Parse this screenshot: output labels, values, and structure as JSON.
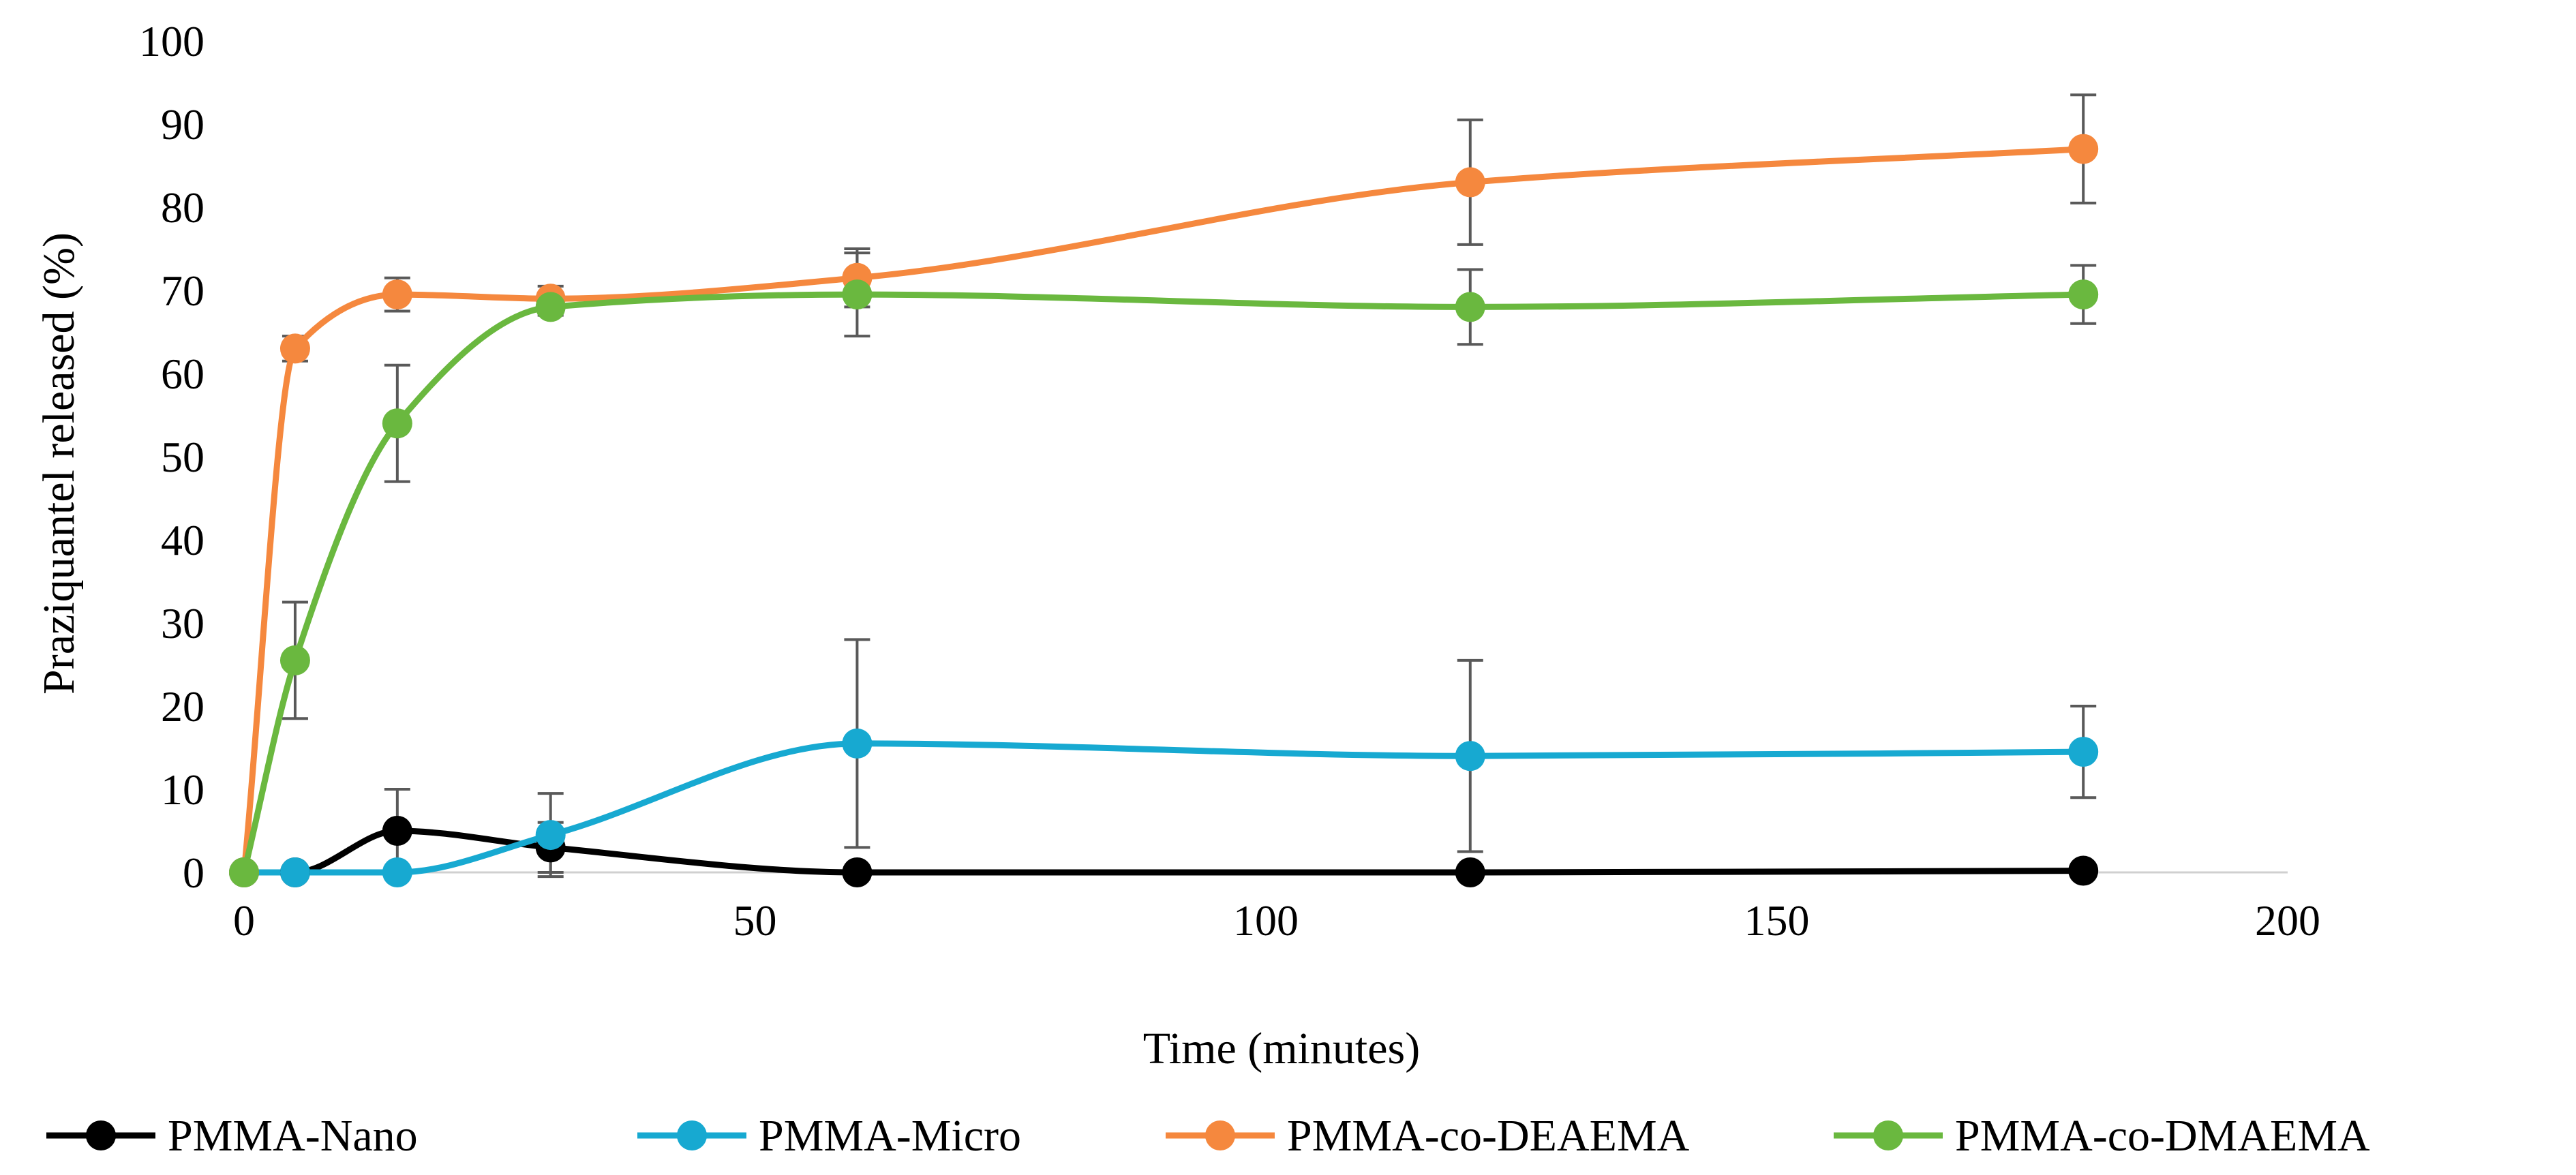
{
  "chart_data": {
    "type": "line",
    "title": "",
    "xlabel": "Time (minutes)",
    "ylabel": "Praziquantel released (%)",
    "xlim": [
      0,
      200
    ],
    "ylim": [
      0,
      100
    ],
    "x_ticks": [
      0,
      50,
      100,
      150,
      200
    ],
    "y_ticks": [
      0,
      10,
      20,
      30,
      40,
      50,
      60,
      70,
      80,
      90,
      100
    ],
    "x_tick_labels": [
      "0",
      "50",
      "100",
      "150",
      "200"
    ],
    "y_tick_labels": [
      "0",
      "10",
      "20",
      "30",
      "40",
      "50",
      "60",
      "70",
      "80",
      "90",
      "100"
    ],
    "grid": false,
    "legend_position": "bottom",
    "x": [
      0,
      5,
      15,
      30,
      60,
      120,
      180
    ],
    "series": [
      {
        "name": "PMMA-Nano",
        "color": "#000000",
        "values": [
          0,
          0,
          5,
          3,
          0,
          0,
          0.2
        ],
        "error": [
          0,
          0,
          5,
          3,
          0,
          0,
          0
        ]
      },
      {
        "name": "PMMA-Micro",
        "color": "#17a9d1",
        "values": [
          0,
          0,
          0,
          4.5,
          15.5,
          14,
          14.5
        ],
        "error": [
          0,
          0,
          0,
          5,
          12.5,
          11.5,
          5.5
        ]
      },
      {
        "name": "PMMA-co-DEAEMA",
        "color": "#f5883e",
        "values": [
          0,
          63,
          69.5,
          69,
          71.5,
          83,
          87
        ],
        "error": [
          0,
          1.5,
          2,
          1.5,
          3.5,
          7.5,
          6.5
        ]
      },
      {
        "name": "PMMA-co-DMAEMA",
        "color": "#6ab83f",
        "values": [
          0,
          25.5,
          54,
          68,
          69.5,
          68,
          69.5
        ],
        "error": [
          0,
          7,
          7,
          1,
          5,
          4.5,
          3.5
        ]
      }
    ]
  }
}
